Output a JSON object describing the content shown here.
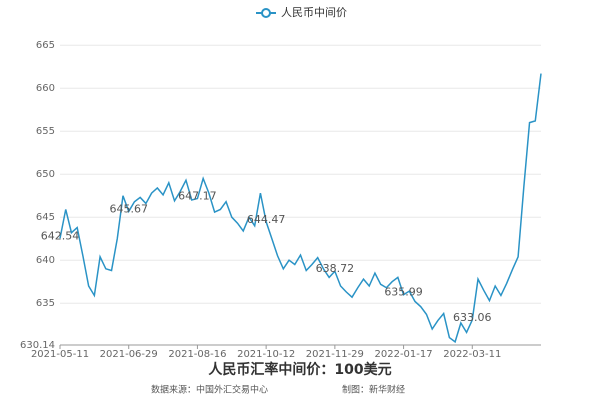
{
  "chart_data": {
    "type": "line",
    "title": "人民币汇率中间价：100美元",
    "source": "数据来源：中国外汇交易中心",
    "credit": "制图：新华财经",
    "categories": [
      "2021-05-11",
      null,
      null,
      null,
      null,
      null,
      null,
      null,
      null,
      null,
      null,
      null,
      "2021-06-29",
      null,
      null,
      null,
      null,
      null,
      null,
      null,
      null,
      null,
      null,
      null,
      "2021-08-16",
      null,
      null,
      null,
      null,
      null,
      null,
      null,
      null,
      null,
      null,
      null,
      "2021-10-12",
      null,
      null,
      null,
      null,
      null,
      null,
      null,
      null,
      null,
      null,
      null,
      "2021-11-29",
      null,
      null,
      null,
      null,
      null,
      null,
      null,
      null,
      null,
      null,
      null,
      "2022-01-17",
      null,
      null,
      null,
      null,
      null,
      null,
      null,
      null,
      null,
      null,
      null,
      "2022-03-11",
      null,
      null,
      null,
      null,
      null,
      null,
      null,
      null,
      null,
      null,
      null,
      null
    ],
    "series": [
      {
        "name": "人民币中间价",
        "color": "#2a93c6",
        "values": [
          642.54,
          645.9,
          643.2,
          643.8,
          640.5,
          637.0,
          635.9,
          640.4,
          639.0,
          638.8,
          642.5,
          647.5,
          645.67,
          646.8,
          647.3,
          646.6,
          647.8,
          648.4,
          647.6,
          649.0,
          646.9,
          648.0,
          649.3,
          647.0,
          647.17,
          649.5,
          647.8,
          645.6,
          645.9,
          646.8,
          645.0,
          644.3,
          643.4,
          645.0,
          644.0,
          647.8,
          644.47,
          642.5,
          640.5,
          639.0,
          640.0,
          639.5,
          640.6,
          638.8,
          639.5,
          640.3,
          639.0,
          638.0,
          638.72,
          637.0,
          636.3,
          635.7,
          636.8,
          637.8,
          637.0,
          638.5,
          637.2,
          636.8,
          637.5,
          638.0,
          635.99,
          636.4,
          635.2,
          634.6,
          633.7,
          632.0,
          633.0,
          633.8,
          631.0,
          630.5,
          632.7,
          631.6,
          633.06,
          637.8,
          636.5,
          635.3,
          637.0,
          635.9,
          637.3,
          638.9,
          640.4,
          648.5,
          656.0,
          656.2,
          661.7
        ],
        "value_labels": [
          "642.54",
          null,
          null,
          null,
          null,
          null,
          null,
          null,
          null,
          null,
          null,
          null,
          "645.67",
          null,
          null,
          null,
          null,
          null,
          null,
          null,
          null,
          null,
          null,
          null,
          "647.17",
          null,
          null,
          null,
          null,
          null,
          null,
          null,
          null,
          null,
          null,
          null,
          "644.47",
          null,
          null,
          null,
          null,
          null,
          null,
          null,
          null,
          null,
          null,
          null,
          "638.72",
          null,
          null,
          null,
          null,
          null,
          null,
          null,
          null,
          null,
          null,
          null,
          "635.99",
          null,
          null,
          null,
          null,
          null,
          null,
          null,
          null,
          null,
          null,
          null,
          "633.06",
          null,
          null,
          null,
          null,
          null,
          null,
          null,
          null,
          null,
          null,
          null,
          null
        ]
      }
    ],
    "ylim": [
      630.14,
      667
    ],
    "yticks": [
      630.14,
      635,
      640,
      645,
      650,
      655,
      660,
      665
    ],
    "grid": true
  }
}
